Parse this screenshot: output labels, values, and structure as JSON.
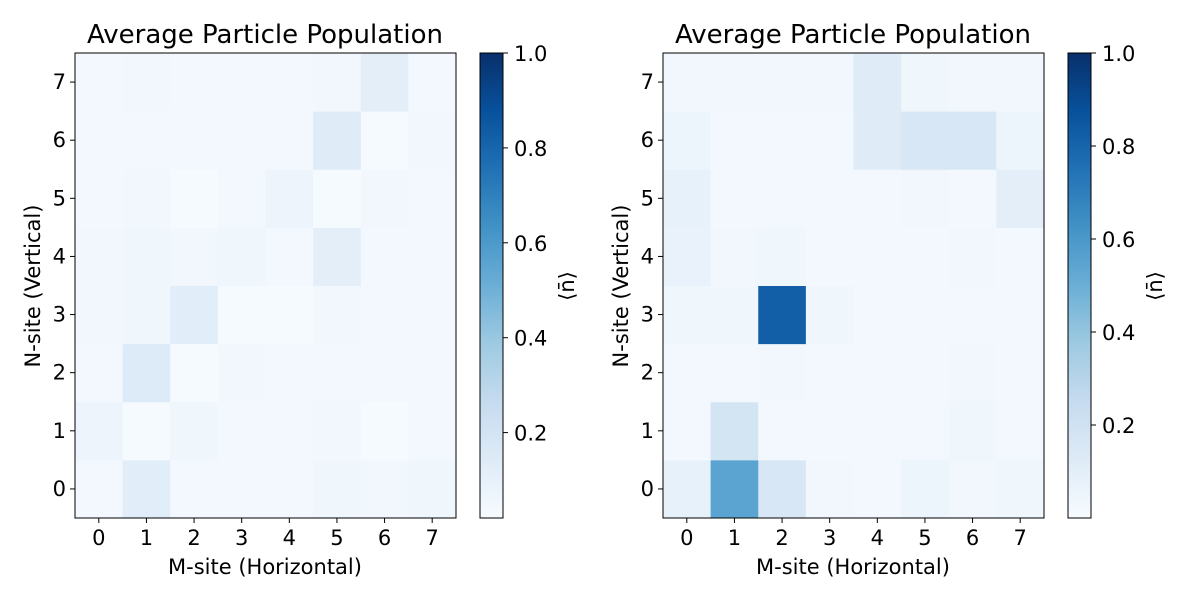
{
  "chart_data": [
    {
      "type": "heatmap",
      "title": "Average Particle Population",
      "xlabel": "M-site (Horizontal)",
      "ylabel": "N-site (Vertical)",
      "x_ticks": [
        "0",
        "1",
        "2",
        "3",
        "4",
        "5",
        "6",
        "7"
      ],
      "y_ticks": [
        "0",
        "1",
        "2",
        "3",
        "4",
        "5",
        "6",
        "7"
      ],
      "colormap": "Blues",
      "colorbar": {
        "label": "⟨n̄⟩",
        "range": [
          0.02,
          1.0
        ],
        "ticks": [
          0.2,
          0.4,
          0.6,
          0.8,
          1.0
        ],
        "tick_labels": [
          "0.2",
          "0.4",
          "0.6",
          "0.8",
          "1.0"
        ]
      },
      "rows_by_N": [
        [
          0.04,
          0.13,
          0.04,
          0.04,
          0.04,
          0.06,
          0.05,
          0.06
        ],
        [
          0.07,
          0.03,
          0.06,
          0.04,
          0.04,
          0.05,
          0.03,
          0.04
        ],
        [
          0.04,
          0.15,
          0.03,
          0.05,
          0.04,
          0.04,
          0.04,
          0.04
        ],
        [
          0.05,
          0.06,
          0.13,
          0.03,
          0.03,
          0.05,
          0.04,
          0.04
        ],
        [
          0.05,
          0.06,
          0.05,
          0.06,
          0.04,
          0.12,
          0.04,
          0.04
        ],
        [
          0.04,
          0.05,
          0.03,
          0.04,
          0.07,
          0.03,
          0.05,
          0.04
        ],
        [
          0.04,
          0.04,
          0.04,
          0.04,
          0.04,
          0.14,
          0.03,
          0.05
        ],
        [
          0.04,
          0.05,
          0.04,
          0.04,
          0.04,
          0.05,
          0.12,
          0.04
        ]
      ]
    },
    {
      "type": "heatmap",
      "title": "Average Particle Population",
      "xlabel": "M-site (Horizontal)",
      "ylabel": "N-site (Vertical)",
      "x_ticks": [
        "0",
        "1",
        "2",
        "3",
        "4",
        "5",
        "6",
        "7"
      ],
      "y_ticks": [
        "0",
        "1",
        "2",
        "3",
        "4",
        "5",
        "6",
        "7"
      ],
      "colormap": "Blues",
      "colorbar": {
        "label": "⟨n̄⟩",
        "range": [
          0.0,
          1.0
        ],
        "ticks": [
          0.2,
          0.4,
          0.6,
          0.8,
          1.0
        ],
        "tick_labels": [
          "0.2",
          "0.4",
          "0.6",
          "0.8",
          "1.0"
        ]
      },
      "rows_by_N": [
        [
          0.08,
          0.55,
          0.16,
          0.03,
          0.02,
          0.05,
          0.03,
          0.04
        ],
        [
          0.02,
          0.18,
          0.02,
          0.02,
          0.02,
          0.02,
          0.04,
          0.02
        ],
        [
          0.02,
          0.02,
          0.03,
          0.02,
          0.02,
          0.02,
          0.03,
          0.02
        ],
        [
          0.04,
          0.04,
          0.82,
          0.04,
          0.02,
          0.02,
          0.02,
          0.02
        ],
        [
          0.07,
          0.03,
          0.04,
          0.02,
          0.02,
          0.02,
          0.03,
          0.02
        ],
        [
          0.08,
          0.02,
          0.02,
          0.02,
          0.02,
          0.03,
          0.02,
          0.1
        ],
        [
          0.05,
          0.02,
          0.02,
          0.02,
          0.12,
          0.16,
          0.16,
          0.05
        ],
        [
          0.03,
          0.03,
          0.03,
          0.03,
          0.12,
          0.04,
          0.03,
          0.03
        ]
      ]
    }
  ]
}
